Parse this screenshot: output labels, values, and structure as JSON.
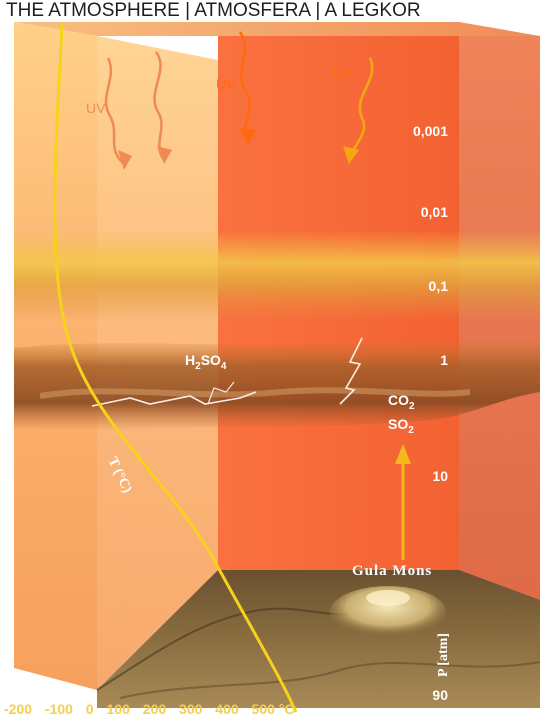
{
  "title": "THE ATMOSPHERE | ATMOSFERA |  A LEGKOR",
  "uv_labels": [
    "UV",
    "UV",
    "UV"
  ],
  "pressure_levels": [
    "0,001",
    "0,01",
    "0,1",
    "1",
    "10",
    "90"
  ],
  "pressure_axis_label": "P [atm]",
  "temperature_label": "T (°C)",
  "temperature_ticks": [
    "-200",
    "-100",
    "0",
    "100",
    "200",
    "300",
    "400",
    "500 °C"
  ],
  "chemicals": {
    "h2so4": {
      "base_h": "H",
      "sub_2": "2",
      "base_so": "SO",
      "sub_4": "4"
    },
    "co2": {
      "base": "CO",
      "sub": "2"
    },
    "so2": {
      "base": "SO",
      "sub": "2"
    }
  },
  "volcano_label": "Gula Mons",
  "colors": {
    "temperature_curve": "#f7d21a",
    "uv_left": "#ef8a52",
    "uv_right": "#ff6a10",
    "volcano_arrow": "#f6b81c",
    "tick_text": "#f3cf4e"
  }
}
